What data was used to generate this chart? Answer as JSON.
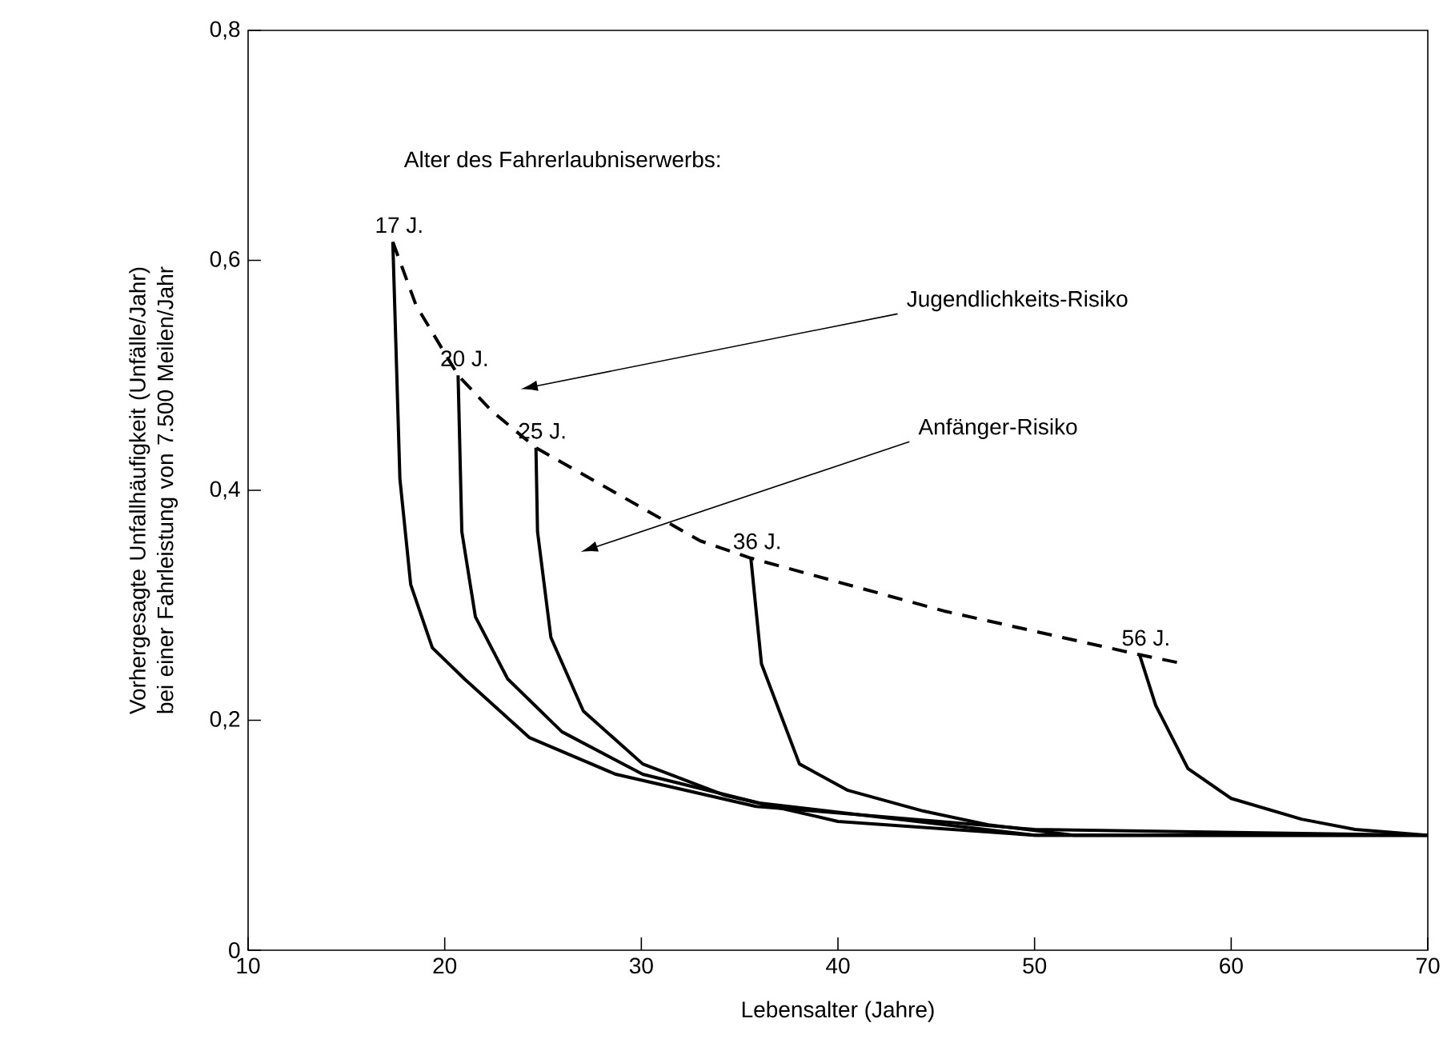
{
  "chart_data": {
    "type": "line",
    "xlabel": "Lebensalter (Jahre)",
    "ylabel": "Vorhergesagte Unfallhäufigkeit (Unfälle/Jahr) bei einer Fahrleistung von 7.500 Meilen/Jahr",
    "xlim": [
      10,
      70
    ],
    "ylim": [
      0,
      0.8
    ],
    "xticks": [
      10,
      20,
      30,
      40,
      50,
      60,
      70
    ],
    "yticks": [
      0,
      {
        "value": 0.2,
        "label": "0,2"
      },
      {
        "value": 0.4,
        "label": "0,4"
      },
      {
        "value": 0.6,
        "label": "0,6"
      },
      {
        "value": 0.8,
        "label": "0,8"
      }
    ],
    "series": [
      {
        "color": "#000000",
        "line_style": "dashed",
        "x": [
          17.36,
          18.54,
          20.68,
          22.39,
          24.64,
          33.0,
          35.57,
          45.4,
          55.34,
          57.34
        ],
        "values": [
          0.616,
          0.561,
          0.5,
          0.469,
          0.437,
          0.356,
          0.341,
          0.295,
          0.257,
          0.25
        ]
      },
      {
        "color": "#000000",
        "line_style": "solid",
        "x": [
          17.36,
          17.72,
          18.27,
          19.37,
          21.0,
          24.3,
          28.7,
          35.84,
          38.86,
          50,
          70
        ],
        "values": [
          0.616,
          0.41,
          0.318,
          0.263,
          0.236,
          0.185,
          0.153,
          0.125,
          0.121,
          0.105,
          0.1
        ]
      },
      {
        "color": "#000000",
        "line_style": "solid",
        "x": [
          20.68,
          20.87,
          21.56,
          23.2,
          25.96,
          30.07,
          36,
          50,
          70
        ],
        "values": [
          0.5,
          0.364,
          0.29,
          0.236,
          0.19,
          0.153,
          0.128,
          0.1,
          0.1
        ]
      },
      {
        "color": "#000000",
        "line_style": "solid",
        "x": [
          24.64,
          24.72,
          25.4,
          27.05,
          30.07,
          34.2,
          40,
          50,
          70
        ],
        "values": [
          0.437,
          0.364,
          0.272,
          0.208,
          0.162,
          0.135,
          0.112,
          0.1,
          0.1
        ]
      },
      {
        "color": "#000000",
        "line_style": "solid",
        "x": [
          35.57,
          36.11,
          38.04,
          40.51,
          44.35,
          47.65,
          52,
          70
        ],
        "values": [
          0.341,
          0.249,
          0.162,
          0.139,
          0.121,
          0.109,
          0.1,
          0.1
        ]
      },
      {
        "color": "#000000",
        "line_style": "solid",
        "x": [
          55.34,
          56.16,
          57.8,
          60.0,
          63.57,
          66.3,
          70
        ],
        "values": [
          0.257,
          0.213,
          0.158,
          0.132,
          0.114,
          0.105,
          0.1
        ]
      }
    ],
    "annotations": [
      "Alter des Fahrerlaubniserwerbs:",
      {
        "text": "17 J.",
        "x": 17.36,
        "y": 0.616
      },
      {
        "text": "20 J.",
        "x": 20.68,
        "y": 0.5
      },
      {
        "text": "25 J.",
        "x": 24.64,
        "y": 0.437
      },
      {
        "text": "36 J.",
        "x": 35.57,
        "y": 0.341
      },
      {
        "text": "56 J.",
        "x": 55.34,
        "y": 0.257
      },
      "Jugendlichkeits-Risiko",
      "Anfänger-Risiko"
    ]
  }
}
